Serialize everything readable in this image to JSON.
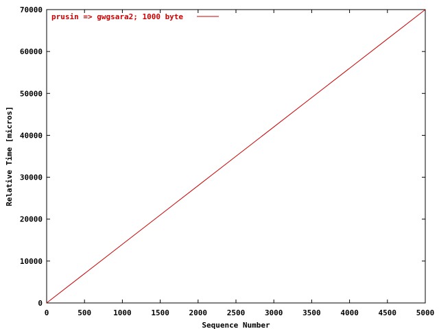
{
  "chart_data": {
    "type": "line",
    "title": "",
    "xlabel": "Sequence Number",
    "ylabel": "Relative Time [micros]",
    "xlim": [
      0,
      5000
    ],
    "ylim": [
      0,
      70000
    ],
    "x_ticks": [
      0,
      500,
      1000,
      1500,
      2000,
      2500,
      3000,
      3500,
      4000,
      4500,
      5000
    ],
    "y_ticks": [
      0,
      10000,
      20000,
      30000,
      40000,
      50000,
      60000,
      70000
    ],
    "grid": false,
    "legend_position": "top-left",
    "series": [
      {
        "name": "prusin => gwgsara2; 1000 byte",
        "color": "#cc0000",
        "x": [
          0,
          500,
          1000,
          1500,
          2000,
          2500,
          3000,
          3500,
          4000,
          4500,
          5000
        ],
        "y": [
          0,
          7000,
          14000,
          21000,
          28000,
          35000,
          42000,
          49000,
          56000,
          63000,
          70000
        ]
      }
    ]
  }
}
